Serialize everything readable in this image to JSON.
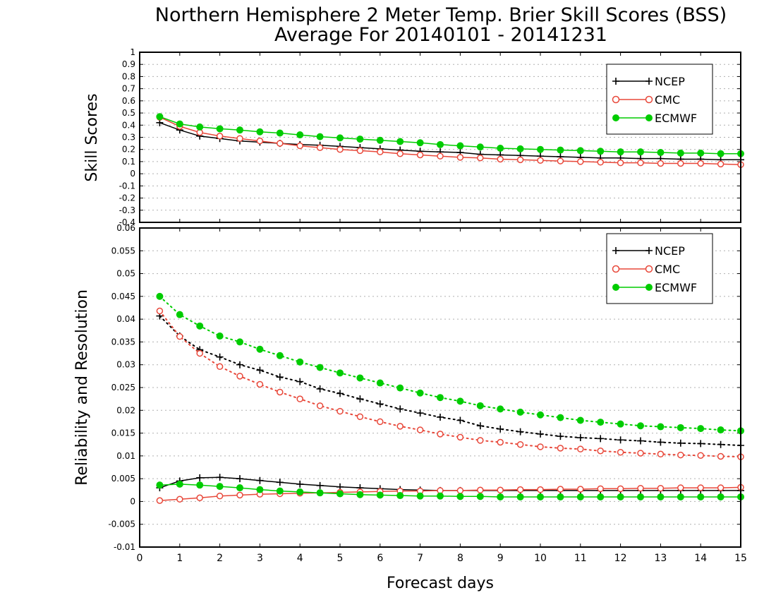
{
  "title": {
    "line1": "Northern Hemisphere 2 Meter Temp. Brier Skill Scores (BSS)",
    "line2": "Average For 20140101 - 20141231"
  },
  "xlabel": "Forecast days",
  "xticks": [
    "0",
    "1",
    "2",
    "3",
    "4",
    "5",
    "6",
    "7",
    "8",
    "9",
    "10",
    "11",
    "12",
    "13",
    "14",
    "15"
  ],
  "colors": {
    "NCEP": "#000000",
    "CMC": "#e8483a",
    "ECMWF": "#00cc00"
  },
  "chart_data": [
    {
      "type": "line",
      "ylabel": "Skill Scores",
      "xlim": [
        0,
        15
      ],
      "ylim": [
        -0.4,
        1
      ],
      "yticks": [
        "-0.4",
        "-0.3",
        "-0.2",
        "-0.1",
        "0",
        "0.1",
        "0.2",
        "0.3",
        "0.4",
        "0.5",
        "0.6",
        "0.7",
        "0.8",
        "0.9",
        "1"
      ],
      "grid": true,
      "legend_position": "top-right",
      "legend": [
        "NCEP",
        "CMC",
        "ECMWF"
      ],
      "x": [
        0.5,
        1,
        1.5,
        2,
        2.5,
        3,
        3.5,
        4,
        4.5,
        5,
        5.5,
        6,
        6.5,
        7,
        7.5,
        8,
        8.5,
        9,
        9.5,
        10,
        10.5,
        11,
        11.5,
        12,
        12.5,
        13,
        13.5,
        14,
        14.5,
        15
      ],
      "series": [
        {
          "name": "NCEP",
          "marker": "plus",
          "style": "solid",
          "values": [
            0.42,
            0.36,
            0.31,
            0.29,
            0.27,
            0.26,
            0.25,
            0.24,
            0.235,
            0.225,
            0.215,
            0.205,
            0.195,
            0.185,
            0.18,
            0.175,
            0.16,
            0.155,
            0.15,
            0.145,
            0.14,
            0.135,
            0.13,
            0.13,
            0.125,
            0.125,
            0.12,
            0.12,
            0.115,
            0.115
          ]
        },
        {
          "name": "CMC",
          "marker": "open-circle",
          "style": "solid",
          "values": [
            0.465,
            0.39,
            0.34,
            0.31,
            0.29,
            0.27,
            0.25,
            0.23,
            0.215,
            0.2,
            0.19,
            0.18,
            0.165,
            0.155,
            0.145,
            0.135,
            0.13,
            0.12,
            0.115,
            0.11,
            0.105,
            0.1,
            0.095,
            0.09,
            0.09,
            0.085,
            0.085,
            0.085,
            0.08,
            0.075
          ]
        },
        {
          "name": "ECMWF",
          "marker": "filled-circle",
          "style": "solid",
          "values": [
            0.47,
            0.41,
            0.385,
            0.37,
            0.36,
            0.345,
            0.335,
            0.32,
            0.305,
            0.295,
            0.285,
            0.275,
            0.265,
            0.255,
            0.24,
            0.23,
            0.22,
            0.21,
            0.205,
            0.2,
            0.195,
            0.19,
            0.185,
            0.18,
            0.18,
            0.175,
            0.17,
            0.17,
            0.165,
            0.165
          ]
        }
      ]
    },
    {
      "type": "line",
      "ylabel": "Reliability and Resolution",
      "xlim": [
        0,
        15
      ],
      "ylim": [
        -0.01,
        0.06
      ],
      "yticks": [
        "-0.01",
        "-0.005",
        "0",
        "0.005",
        "0.01",
        "0.015",
        "0.02",
        "0.025",
        "0.03",
        "0.035",
        "0.04",
        "0.045",
        "0.05",
        "0.055",
        "0.06"
      ],
      "grid": true,
      "legend_position": "top-right",
      "legend": [
        "NCEP",
        "CMC",
        "ECMWF"
      ],
      "x": [
        0.5,
        1,
        1.5,
        2,
        2.5,
        3,
        3.5,
        4,
        4.5,
        5,
        5.5,
        6,
        6.5,
        7,
        7.5,
        8,
        8.5,
        9,
        9.5,
        10,
        10.5,
        11,
        11.5,
        12,
        12.5,
        13,
        13.5,
        14,
        14.5,
        15
      ],
      "series": [
        {
          "name": "NCEP",
          "group": "resolution",
          "marker": "plus",
          "style": "dotted",
          "values": [
            0.0407,
            0.0363,
            0.0333,
            0.0317,
            0.03,
            0.0288,
            0.0273,
            0.0263,
            0.0247,
            0.0237,
            0.0225,
            0.0214,
            0.0203,
            0.0194,
            0.0185,
            0.0178,
            0.0166,
            0.0159,
            0.0153,
            0.0148,
            0.0143,
            0.014,
            0.0138,
            0.0135,
            0.0133,
            0.013,
            0.0128,
            0.0127,
            0.0125,
            0.0123
          ]
        },
        {
          "name": "CMC",
          "group": "resolution",
          "marker": "open-circle",
          "style": "dotted",
          "values": [
            0.0418,
            0.0362,
            0.0325,
            0.0296,
            0.0275,
            0.0257,
            0.024,
            0.0225,
            0.021,
            0.0198,
            0.0186,
            0.0175,
            0.0165,
            0.0157,
            0.0148,
            0.0141,
            0.0134,
            0.013,
            0.0125,
            0.012,
            0.0117,
            0.0115,
            0.0111,
            0.0108,
            0.0106,
            0.0104,
            0.0102,
            0.0101,
            0.0099,
            0.0098
          ]
        },
        {
          "name": "ECMWF",
          "group": "resolution",
          "marker": "filled-circle",
          "style": "dotted",
          "values": [
            0.045,
            0.041,
            0.0385,
            0.0363,
            0.035,
            0.0334,
            0.032,
            0.0306,
            0.0294,
            0.0282,
            0.0271,
            0.026,
            0.0249,
            0.0238,
            0.0228,
            0.022,
            0.021,
            0.0203,
            0.0196,
            0.019,
            0.0184,
            0.0178,
            0.0174,
            0.017,
            0.0166,
            0.0164,
            0.0162,
            0.016,
            0.0157,
            0.0155
          ]
        },
        {
          "name": "NCEP",
          "group": "reliability",
          "marker": "plus",
          "style": "solid",
          "values": [
            0.003,
            0.0045,
            0.0052,
            0.0053,
            0.005,
            0.0046,
            0.0042,
            0.0038,
            0.0035,
            0.0032,
            0.003,
            0.0028,
            0.0026,
            0.0025,
            0.0024,
            0.0024,
            0.0024,
            0.0024,
            0.0024,
            0.0024,
            0.0024,
            0.0024,
            0.0024,
            0.0024,
            0.0024,
            0.0024,
            0.0024,
            0.0024,
            0.0024,
            0.0024
          ]
        },
        {
          "name": "CMC",
          "group": "reliability",
          "marker": "open-circle",
          "style": "solid",
          "values": [
            0.0002,
            0.0005,
            0.0008,
            0.0012,
            0.0014,
            0.0016,
            0.0017,
            0.0018,
            0.0019,
            0.002,
            0.0021,
            0.0022,
            0.0023,
            0.0023,
            0.0024,
            0.0024,
            0.0025,
            0.0025,
            0.0026,
            0.0026,
            0.0027,
            0.0027,
            0.0028,
            0.0028,
            0.0029,
            0.0029,
            0.003,
            0.003,
            0.003,
            0.0031
          ]
        },
        {
          "name": "ECMWF",
          "group": "reliability",
          "marker": "filled-circle",
          "style": "solid",
          "values": [
            0.0036,
            0.0038,
            0.0036,
            0.0033,
            0.003,
            0.0026,
            0.0023,
            0.0021,
            0.0019,
            0.0017,
            0.0015,
            0.0014,
            0.0013,
            0.0012,
            0.0012,
            0.0011,
            0.0011,
            0.001,
            0.001,
            0.001,
            0.001,
            0.001,
            0.001,
            0.001,
            0.001,
            0.001,
            0.001,
            0.001,
            0.001,
            0.001
          ]
        }
      ]
    }
  ]
}
